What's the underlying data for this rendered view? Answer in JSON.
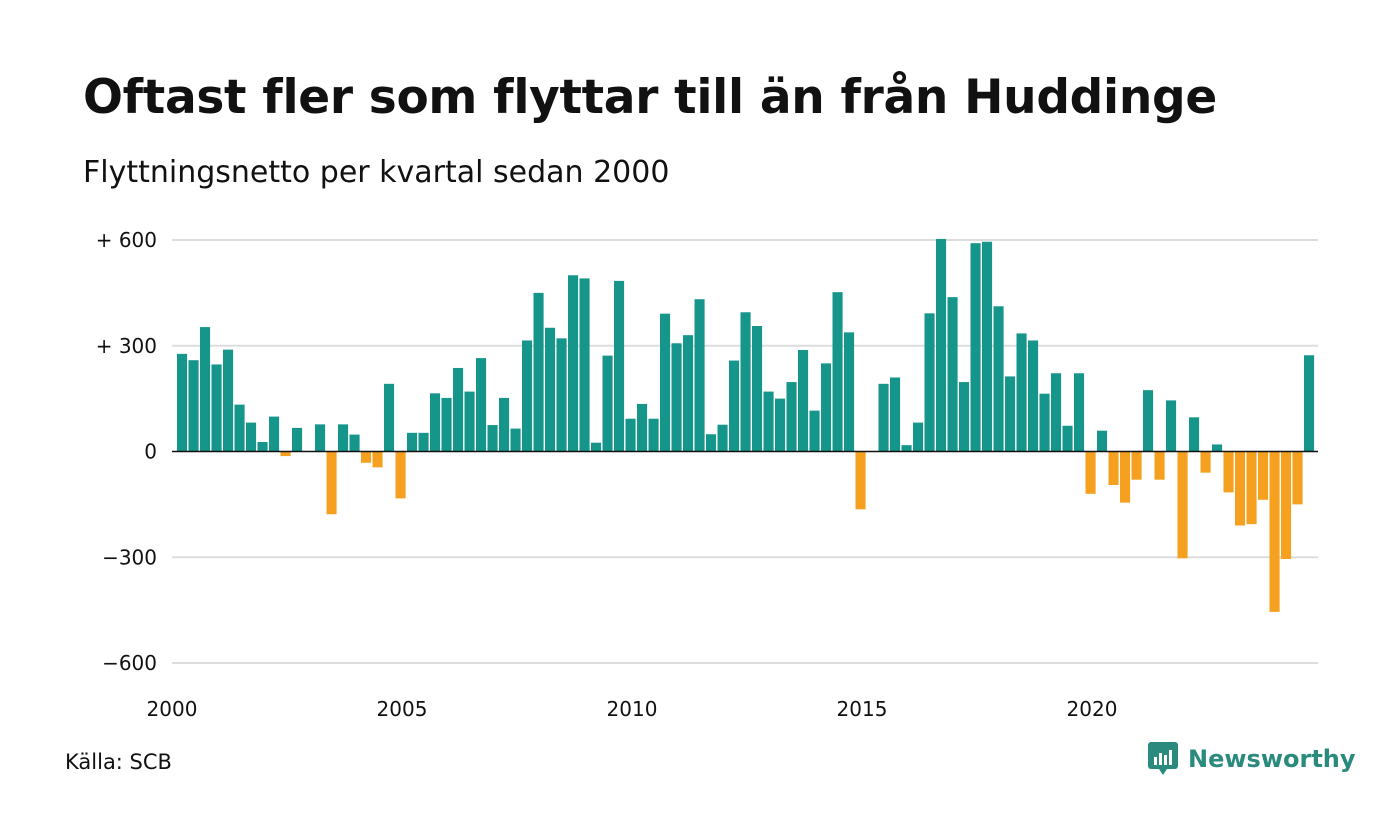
{
  "title": "Oftast fler som flyttar till än från Huddinge",
  "subtitle": "Flyttningsnetto per kvartal sedan 2000",
  "source": "Källa: SCB",
  "brand": {
    "name": "Newsworthy",
    "icon": "newsworthy-logo-icon"
  },
  "colors": {
    "positive": "#16968a",
    "negative": "#f5a01e",
    "grid": "#dddddd",
    "zero": "#111111"
  },
  "chart_data": {
    "type": "bar",
    "x_start": 2000,
    "periods_per_year": 4,
    "ylim": [
      -600,
      600
    ],
    "grid": true,
    "y_ticks": [
      {
        "value": 600,
        "label": "+ 600"
      },
      {
        "value": 300,
        "label": "+ 300"
      },
      {
        "value": 0,
        "label": "0"
      },
      {
        "value": -300,
        "label": "−300"
      },
      {
        "value": -600,
        "label": "−600"
      }
    ],
    "x_ticks": [
      {
        "value": 2000,
        "label": "2000"
      },
      {
        "value": 2005,
        "label": "2005"
      },
      {
        "value": 2010,
        "label": "2010"
      },
      {
        "value": 2015,
        "label": "2015"
      },
      {
        "value": 2020,
        "label": "2020"
      }
    ],
    "values": [
      277,
      259,
      353,
      247,
      289,
      133,
      82,
      27,
      99,
      -13,
      67,
      0,
      77,
      -178,
      77,
      48,
      -32,
      -45,
      192,
      -133,
      53,
      53,
      165,
      152,
      237,
      170,
      265,
      75,
      152,
      65,
      315,
      450,
      351,
      321,
      500,
      491,
      25,
      272,
      484,
      93,
      135,
      93,
      391,
      307,
      330,
      432,
      49,
      76,
      258,
      395,
      356,
      170,
      150,
      197,
      288,
      116,
      250,
      452,
      338,
      -164,
      0,
      192,
      210,
      18,
      82,
      392,
      603,
      438,
      197,
      591,
      595,
      412,
      213,
      335,
      315,
      164,
      222,
      73,
      222,
      -120,
      59,
      -95,
      -145,
      -80,
      174,
      -80,
      145,
      -303,
      97,
      -60,
      20,
      -116,
      -210,
      -206,
      -137,
      -455,
      -305,
      -150,
      273
    ]
  }
}
